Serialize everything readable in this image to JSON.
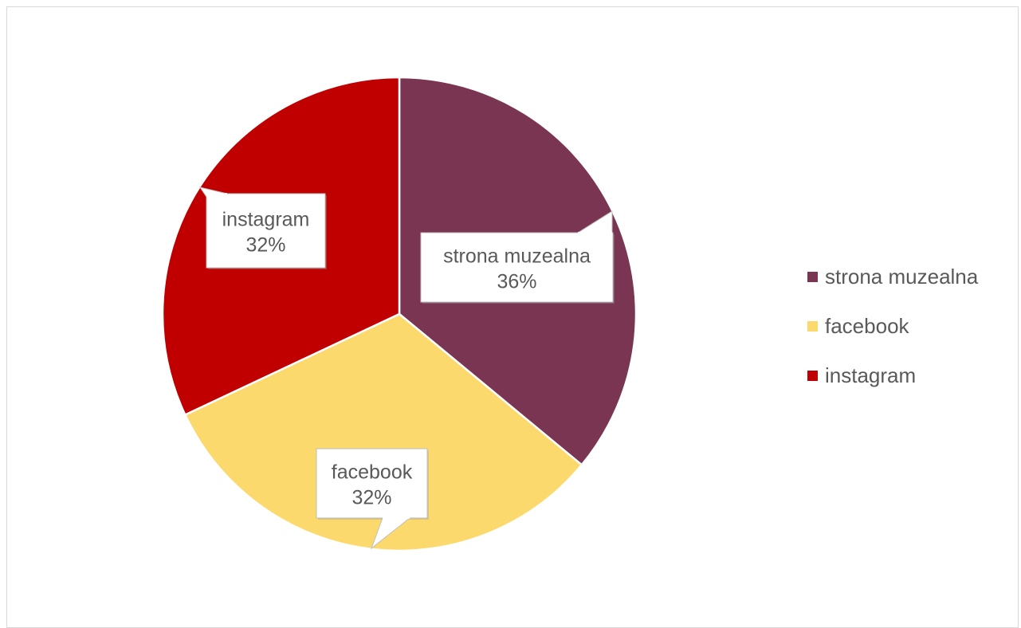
{
  "chart_data": {
    "type": "pie",
    "title": "",
    "slices": [
      {
        "label": "strona muzealna",
        "value": 36,
        "value_label": "36%",
        "color": "#7a3553"
      },
      {
        "label": "facebook",
        "value": 32,
        "value_label": "32%",
        "color": "#fcd96c"
      },
      {
        "label": "instagram",
        "value": 32,
        "value_label": "32%",
        "color": "#c00000"
      }
    ],
    "legend_position": "right",
    "data_labels": "callouts with category name and percentage"
  },
  "legend": {
    "items": [
      {
        "label": "strona muzealna",
        "color": "#7a3553"
      },
      {
        "label": "facebook",
        "color": "#fcd96c"
      },
      {
        "label": "instagram",
        "color": "#c00000"
      }
    ]
  }
}
